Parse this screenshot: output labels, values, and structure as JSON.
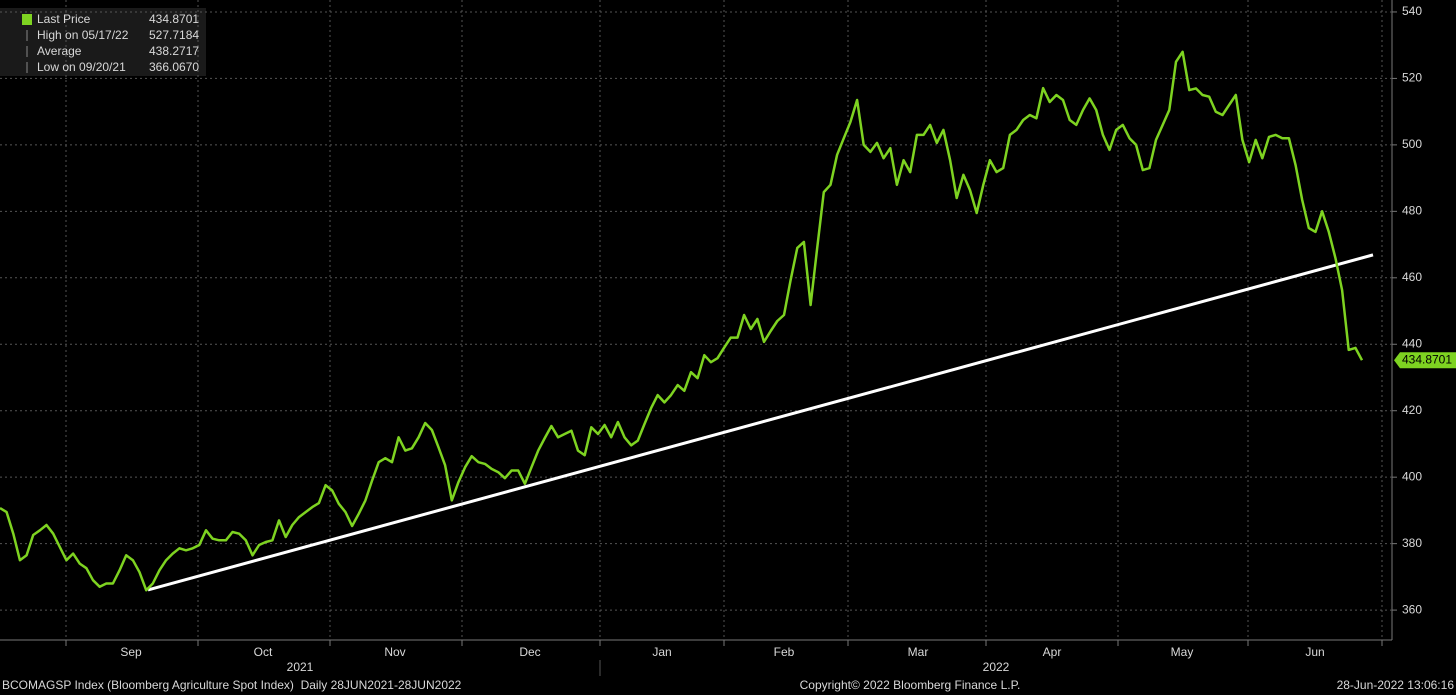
{
  "chart_data": {
    "type": "line",
    "series": [
      {
        "name": "Last Price",
        "color": "#7ed321",
        "values": [
          390.7,
          389.5,
          383,
          375,
          376.5,
          382.6,
          384,
          385.6,
          383,
          379,
          375,
          377,
          374,
          372.6,
          369,
          367,
          368,
          368,
          372,
          376.5,
          375,
          371.4,
          366,
          368,
          372,
          375,
          377,
          378.6,
          378,
          378.6,
          379.6,
          384,
          381.5,
          381,
          381,
          383.5,
          383,
          381,
          376.5,
          379.6,
          380.5,
          381,
          387,
          382,
          385.6,
          388,
          389.5,
          391,
          392.2,
          397.6,
          396,
          392,
          389.5,
          385.3,
          389,
          393,
          399,
          404.5,
          405.7,
          404.5,
          412,
          408,
          408.7,
          412,
          416.3,
          414.2,
          409,
          403.6,
          393,
          398.5,
          403,
          406.3,
          404.5,
          404,
          402.5,
          401.5,
          399.7,
          402,
          402,
          398,
          403,
          408,
          411.8,
          415.4,
          412,
          413,
          414,
          408,
          406.6,
          415,
          413,
          415.7,
          412,
          416.6,
          412,
          409.6,
          411,
          416,
          420.8,
          424.7,
          422.5,
          424.7,
          427.7,
          426,
          431.6,
          429.8,
          436.7,
          434.6,
          435.8,
          439,
          442,
          442,
          448.8,
          444.6,
          447.6,
          440.7,
          444,
          447,
          448.8,
          459.3,
          469,
          470.8,
          451.8,
          469,
          485.8,
          488,
          497,
          502,
          506.9,
          513.5,
          500,
          497.9,
          500.6,
          496,
          499,
          488,
          495.4,
          491.8,
          503,
          503,
          506,
          500.6,
          504.5,
          495.4,
          484,
          491,
          486.4,
          479.5,
          488,
          495.4,
          491.8,
          493,
          503,
          504.5,
          507.5,
          509,
          508,
          517.1,
          512.9,
          515,
          513.5,
          507.5,
          506,
          510.5,
          514,
          510.5,
          503,
          498.5,
          504.5,
          506,
          502,
          500,
          492.4,
          493,
          501.5,
          506,
          510.5,
          525,
          528,
          516.5,
          517,
          515,
          514.5,
          510,
          509,
          512,
          515,
          501.5,
          494.8,
          501.5,
          496,
          502.4,
          503,
          502,
          502,
          493.9,
          483.4,
          475,
          473.8,
          480,
          473.8,
          466,
          456.3,
          438.3,
          438.9,
          435.2
        ]
      }
    ],
    "trendline": {
      "color": "#ffffff",
      "values": [
        366.07,
        466.9
      ]
    },
    "ylim": [
      351,
      543.6
    ],
    "yticks": [
      360,
      380,
      400,
      420,
      440,
      460,
      480,
      500,
      520,
      540
    ],
    "grid": true,
    "months": [
      "Sep",
      "Oct",
      "Nov",
      "Dec",
      "Jan",
      "Feb",
      "Mar",
      "Apr",
      "May",
      "Jun"
    ],
    "years": [
      "2021",
      "2022"
    ],
    "legend": [
      {
        "label": "Last Price",
        "value": "434.8701"
      },
      {
        "label": "High on 05/17/22",
        "value": "527.7184"
      },
      {
        "label": "Average",
        "value": "438.2717"
      },
      {
        "label": "Low on 09/20/21",
        "value": "366.0670"
      }
    ],
    "footer": {
      "left": "BCOMAGSP Index (Bloomberg Agriculture Spot Index)  Daily 28JUN2021-28JUN2022",
      "center": "Copyright© 2022 Bloomberg Finance L.P.",
      "right": "28-Jun-2022 13:06:16"
    }
  }
}
